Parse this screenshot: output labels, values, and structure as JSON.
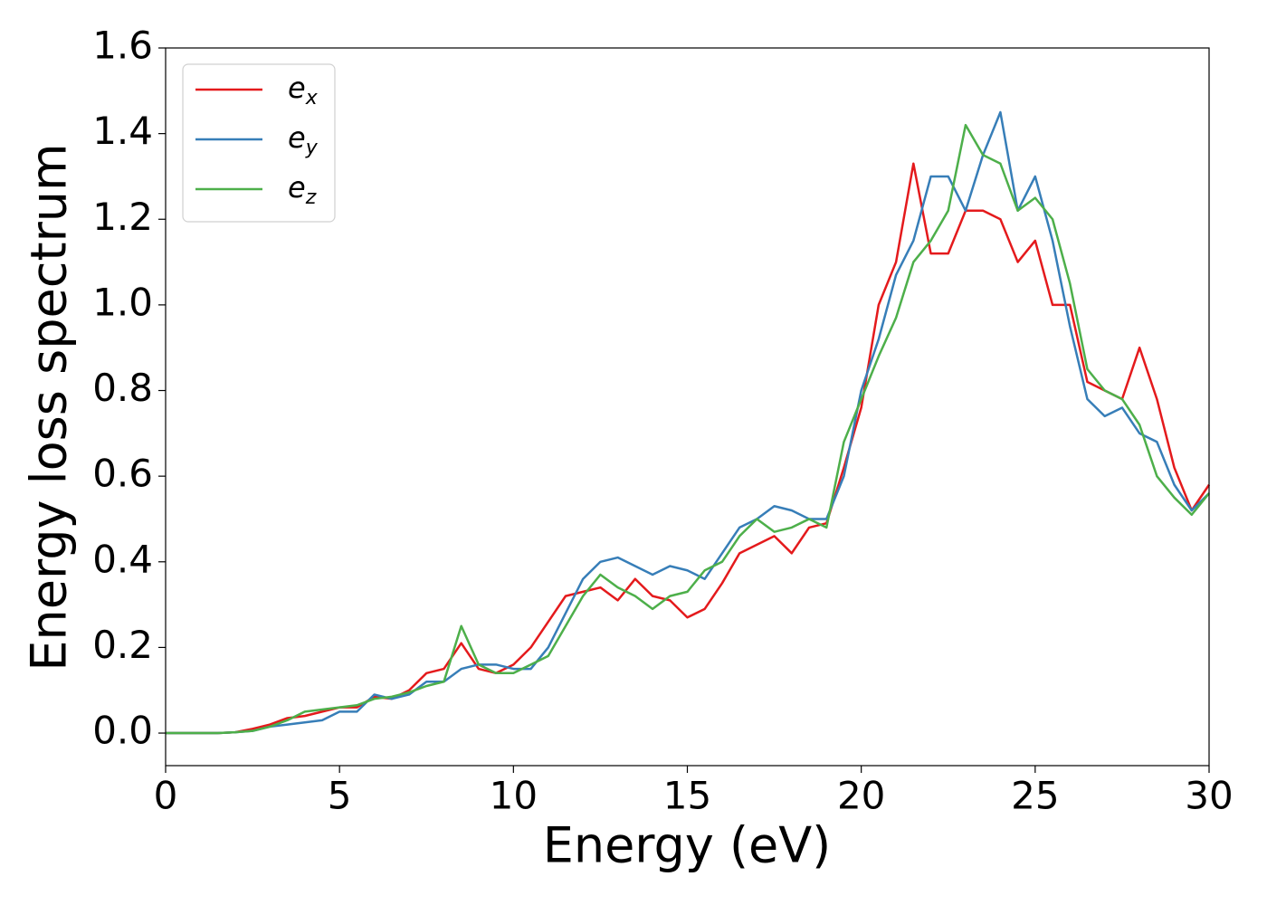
{
  "chart_data": {
    "type": "line",
    "xlabel": "Energy (eV)",
    "ylabel": "Energy loss spectrum",
    "x": [
      0,
      0.5,
      1,
      1.5,
      2,
      2.5,
      3,
      3.5,
      4,
      4.5,
      5,
      5.5,
      6,
      6.5,
      7,
      7.5,
      8,
      8.5,
      9,
      9.5,
      10,
      10.5,
      11,
      11.5,
      12,
      12.5,
      13,
      13.5,
      14,
      14.5,
      15,
      15.5,
      16,
      16.5,
      17,
      17.5,
      18,
      18.5,
      19,
      19.5,
      20,
      20.5,
      21,
      21.5,
      22,
      22.5,
      23,
      23.5,
      24,
      24.5,
      25,
      25.5,
      26,
      26.5,
      27,
      27.5,
      28,
      28.5,
      29,
      29.5,
      30
    ],
    "series": [
      {
        "name": "ex",
        "color": "#e41a1c",
        "values": [
          0,
          0,
          0,
          0,
          0.002,
          0.01,
          0.02,
          0.035,
          0.04,
          0.05,
          0.06,
          0.06,
          0.085,
          0.08,
          0.1,
          0.14,
          0.15,
          0.21,
          0.15,
          0.14,
          0.16,
          0.2,
          0.26,
          0.32,
          0.33,
          0.34,
          0.31,
          0.36,
          0.32,
          0.31,
          0.27,
          0.29,
          0.35,
          0.42,
          0.44,
          0.46,
          0.42,
          0.48,
          0.49,
          0.62,
          0.76,
          1.0,
          1.1,
          1.33,
          1.12,
          1.12,
          1.22,
          1.22,
          1.2,
          1.1,
          1.15,
          1.0,
          1.0,
          0.82,
          0.8,
          0.78,
          0.9,
          0.78,
          0.62,
          0.52,
          0.58
        ]
      },
      {
        "name": "ey",
        "color": "#377eb8",
        "values": [
          0,
          0,
          0,
          0,
          0.002,
          0.005,
          0.015,
          0.02,
          0.025,
          0.03,
          0.05,
          0.05,
          0.09,
          0.08,
          0.09,
          0.12,
          0.12,
          0.15,
          0.16,
          0.16,
          0.15,
          0.15,
          0.2,
          0.28,
          0.36,
          0.4,
          0.41,
          0.39,
          0.37,
          0.39,
          0.38,
          0.36,
          0.42,
          0.48,
          0.5,
          0.53,
          0.52,
          0.5,
          0.5,
          0.6,
          0.8,
          0.92,
          1.07,
          1.15,
          1.3,
          1.3,
          1.22,
          1.35,
          1.45,
          1.22,
          1.3,
          1.15,
          0.95,
          0.78,
          0.74,
          0.76,
          0.7,
          0.68,
          0.58,
          0.52,
          0.56
        ]
      },
      {
        "name": "ez",
        "color": "#4daf4a",
        "values": [
          0,
          0,
          0,
          0,
          0.002,
          0.005,
          0.015,
          0.03,
          0.05,
          0.055,
          0.06,
          0.065,
          0.08,
          0.085,
          0.095,
          0.11,
          0.12,
          0.25,
          0.16,
          0.14,
          0.14,
          0.16,
          0.18,
          0.25,
          0.32,
          0.37,
          0.34,
          0.32,
          0.29,
          0.32,
          0.33,
          0.38,
          0.4,
          0.46,
          0.5,
          0.47,
          0.48,
          0.5,
          0.48,
          0.68,
          0.78,
          0.88,
          0.97,
          1.1,
          1.15,
          1.22,
          1.42,
          1.35,
          1.33,
          1.22,
          1.25,
          1.2,
          1.05,
          0.85,
          0.8,
          0.78,
          0.72,
          0.6,
          0.55,
          0.51,
          0.56
        ]
      }
    ],
    "xlim": [
      0,
      30
    ],
    "xticks": [
      0,
      5,
      10,
      15,
      20,
      25,
      30
    ],
    "ylim": [
      -0.076,
      1.6
    ],
    "yticks": [
      {
        "value": 0,
        "label": "0.0"
      },
      0.2,
      0.4,
      0.6,
      0.8,
      {
        "value": 1,
        "label": "1.0"
      },
      1.2,
      1.4,
      1.6
    ],
    "grid": false,
    "legend": "upper left"
  }
}
